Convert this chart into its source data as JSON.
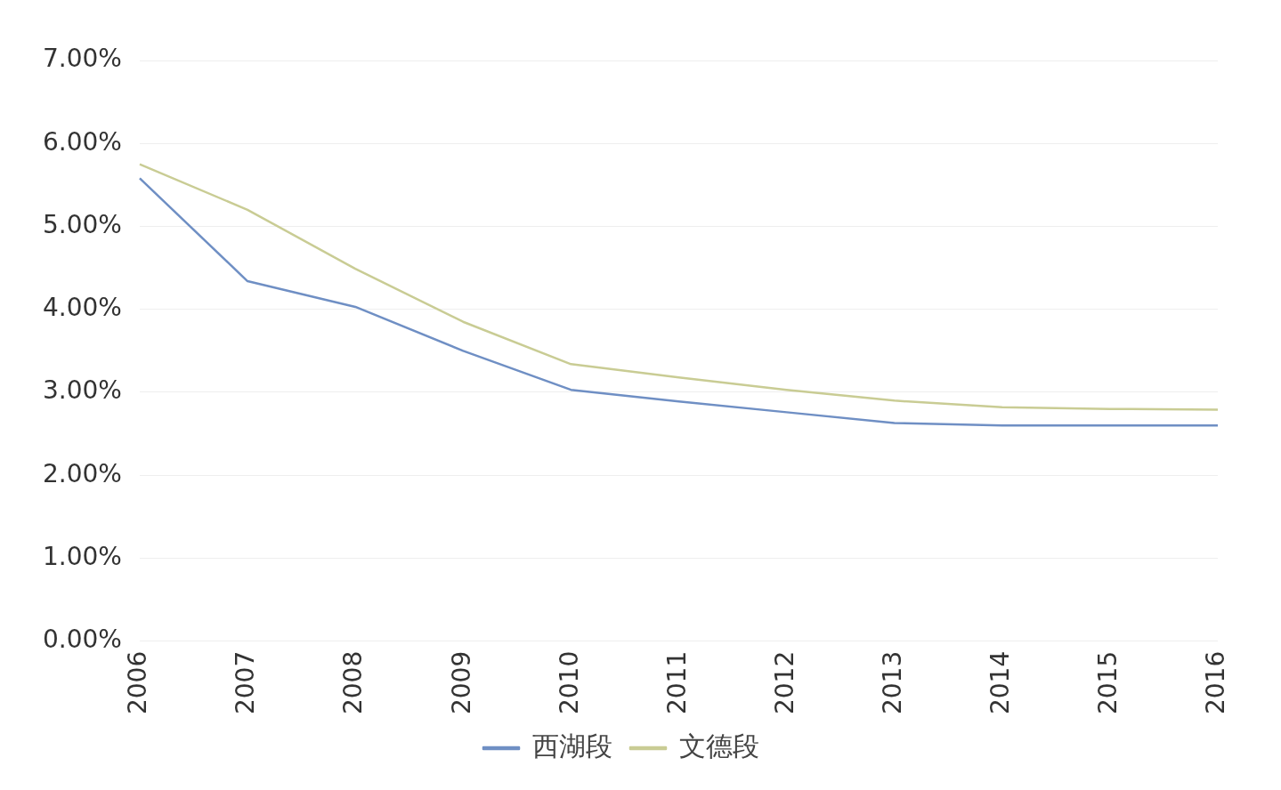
{
  "chart_data": {
    "type": "line",
    "categories": [
      "2006",
      "2007",
      "2008",
      "2009",
      "2010",
      "2011",
      "2012",
      "2013",
      "2014",
      "2015",
      "2016"
    ],
    "series": [
      {
        "name": "西湖段",
        "color": "#6f8fc4",
        "values": [
          5.58,
          4.34,
          4.03,
          3.5,
          3.03,
          2.89,
          2.76,
          2.63,
          2.6,
          2.6,
          2.6
        ]
      },
      {
        "name": "文德段",
        "color": "#c9cc94",
        "values": [
          5.75,
          5.2,
          4.49,
          3.85,
          3.34,
          3.18,
          3.03,
          2.9,
          2.82,
          2.8,
          2.79
        ]
      }
    ],
    "ylim": [
      0,
      7
    ],
    "yticks": [
      {
        "value": 0,
        "label": "0.00%"
      },
      {
        "value": 1,
        "label": "1.00%"
      },
      {
        "value": 2,
        "label": "2.00%"
      },
      {
        "value": 3,
        "label": "3.00%"
      },
      {
        "value": 4,
        "label": "4.00%"
      },
      {
        "value": 5,
        "label": "5.00%"
      },
      {
        "value": 6,
        "label": "6.00%"
      },
      {
        "value": 7,
        "label": "7.00%"
      }
    ],
    "grid": "y",
    "legend": "bottom",
    "marker": "none",
    "line_style": "solid"
  }
}
